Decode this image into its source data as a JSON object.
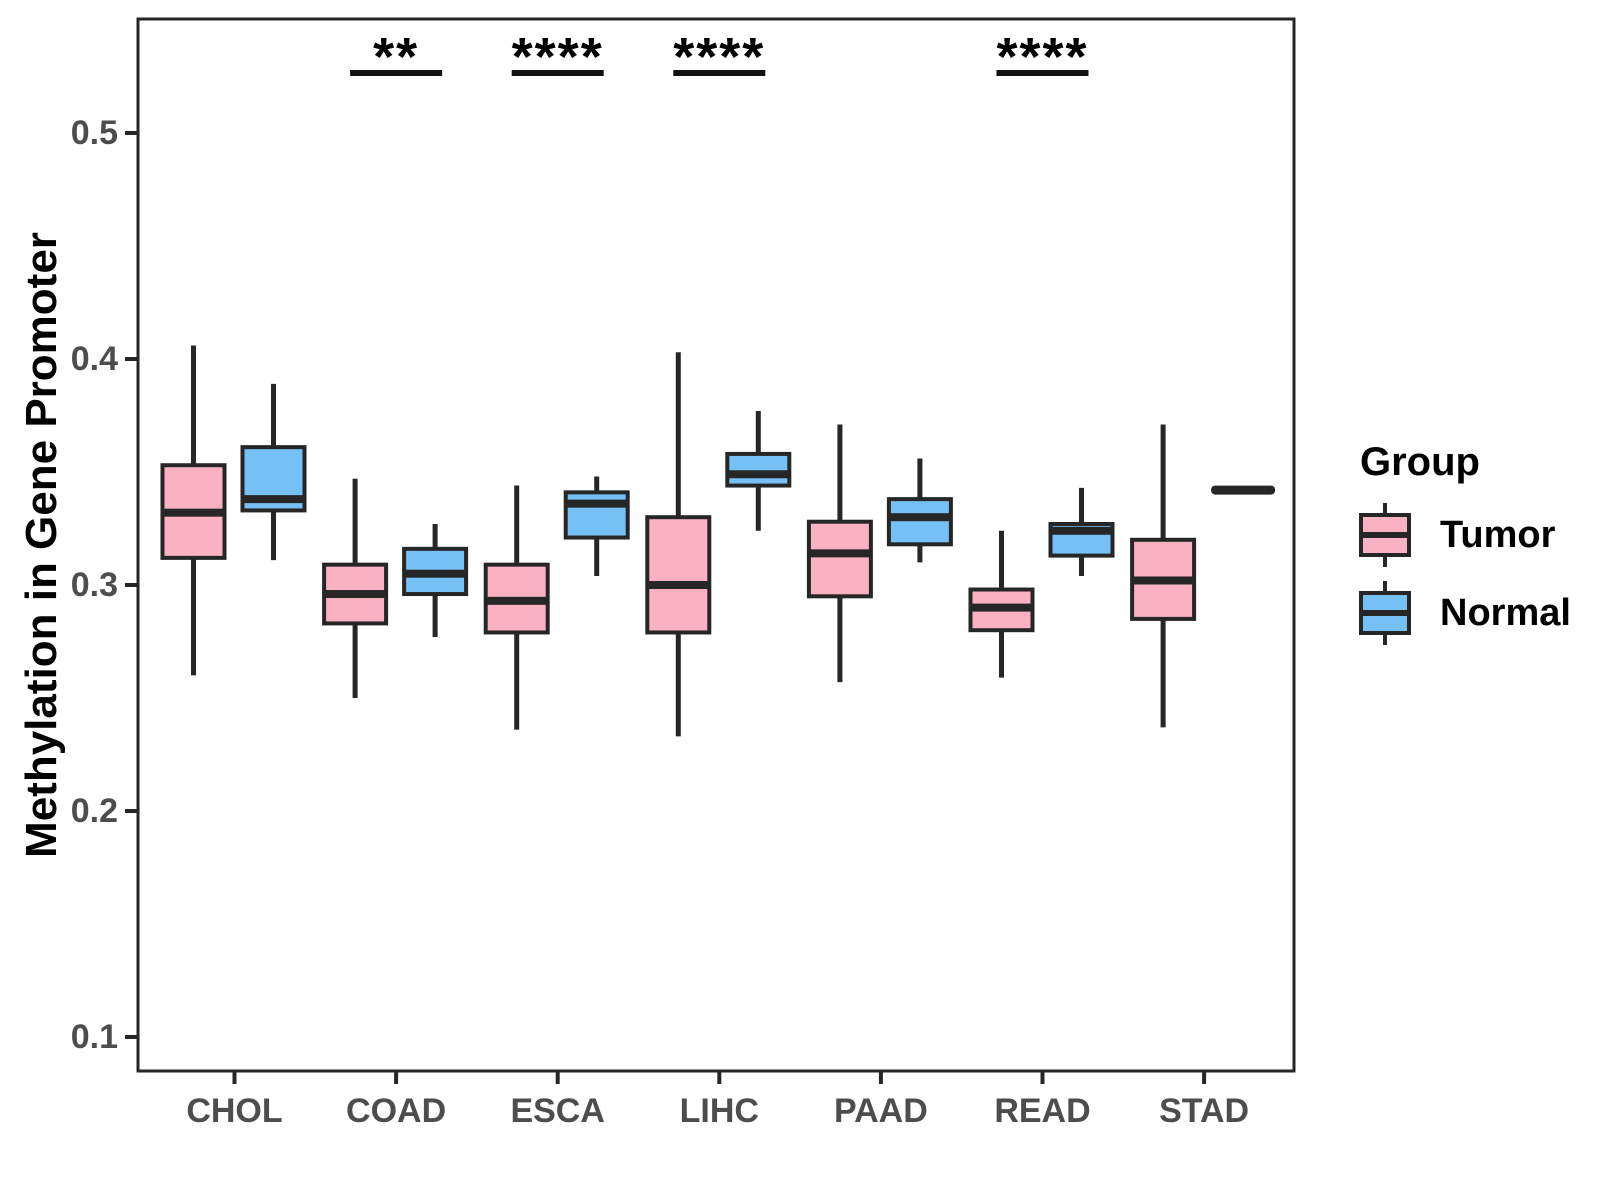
{
  "chart_data": {
    "type": "grouped_boxplot",
    "title": "",
    "xlabel": "",
    "ylabel": "Methylation in Gene Promoter",
    "categories": [
      "CHOL",
      "COAD",
      "ESCA",
      "LIHC",
      "PAAD",
      "READ",
      "STAD"
    ],
    "y_ticks": [
      {
        "label": "0.5",
        "value": 0.5
      },
      {
        "label": "0.4",
        "value": 0.4
      },
      {
        "label": "0.3",
        "value": 0.3
      },
      {
        "label": "0.2",
        "value": 0.2
      },
      {
        "label": "0.1",
        "value": 0.1
      }
    ],
    "ylim": [
      0.08,
      0.55
    ],
    "grid": false,
    "colors": {
      "tumor_fill": "#FAB1C3",
      "normal_fill": "#75C0F5",
      "line": "#262626",
      "tick_text": "#4d4d4d"
    },
    "series": [
      {
        "name": "Tumor",
        "color": "#FAB1C3",
        "boxes": [
          {
            "category": "CHOL",
            "low": 0.26,
            "q1": 0.312,
            "median": 0.332,
            "q3": 0.353,
            "high": 0.406
          },
          {
            "category": "COAD",
            "low": 0.25,
            "q1": 0.283,
            "median": 0.296,
            "q3": 0.309,
            "high": 0.347
          },
          {
            "category": "ESCA",
            "low": 0.236,
            "q1": 0.279,
            "median": 0.293,
            "q3": 0.309,
            "high": 0.344
          },
          {
            "category": "LIHC",
            "low": 0.233,
            "q1": 0.279,
            "median": 0.3,
            "q3": 0.33,
            "high": 0.403
          },
          {
            "category": "PAAD",
            "low": 0.257,
            "q1": 0.295,
            "median": 0.314,
            "q3": 0.328,
            "high": 0.371
          },
          {
            "category": "READ",
            "low": 0.259,
            "q1": 0.28,
            "median": 0.29,
            "q3": 0.298,
            "high": 0.324
          },
          {
            "category": "STAD",
            "low": 0.237,
            "q1": 0.285,
            "median": 0.302,
            "q3": 0.32,
            "high": 0.371
          }
        ]
      },
      {
        "name": "Normal",
        "color": "#75C0F5",
        "boxes": [
          {
            "category": "CHOL",
            "low": 0.311,
            "q1": 0.333,
            "median": 0.338,
            "q3": 0.361,
            "high": 0.389
          },
          {
            "category": "COAD",
            "low": 0.277,
            "q1": 0.296,
            "median": 0.305,
            "q3": 0.316,
            "high": 0.327
          },
          {
            "category": "ESCA",
            "low": 0.304,
            "q1": 0.321,
            "median": 0.336,
            "q3": 0.341,
            "high": 0.348
          },
          {
            "category": "LIHC",
            "low": 0.324,
            "q1": 0.344,
            "median": 0.349,
            "q3": 0.358,
            "high": 0.377
          },
          {
            "category": "PAAD",
            "low": 0.31,
            "q1": 0.318,
            "median": 0.33,
            "q3": 0.338,
            "high": 0.356
          },
          {
            "category": "READ",
            "low": 0.304,
            "q1": 0.313,
            "median": 0.324,
            "q3": 0.327,
            "high": 0.343
          },
          {
            "category": "STAD",
            "low": 0.342,
            "q1": 0.342,
            "median": 0.342,
            "q3": 0.342,
            "high": 0.342
          }
        ]
      }
    ],
    "significance": [
      {
        "category": "COAD",
        "label": "**"
      },
      {
        "category": "ESCA",
        "label": "****"
      },
      {
        "category": "LIHC",
        "label": "****"
      },
      {
        "category": "READ",
        "label": "****"
      }
    ],
    "legend": {
      "title": "Group",
      "items": [
        {
          "label": "Tumor",
          "color": "#FAB1C3"
        },
        {
          "label": "Normal",
          "color": "#75C0F5"
        }
      ]
    }
  }
}
